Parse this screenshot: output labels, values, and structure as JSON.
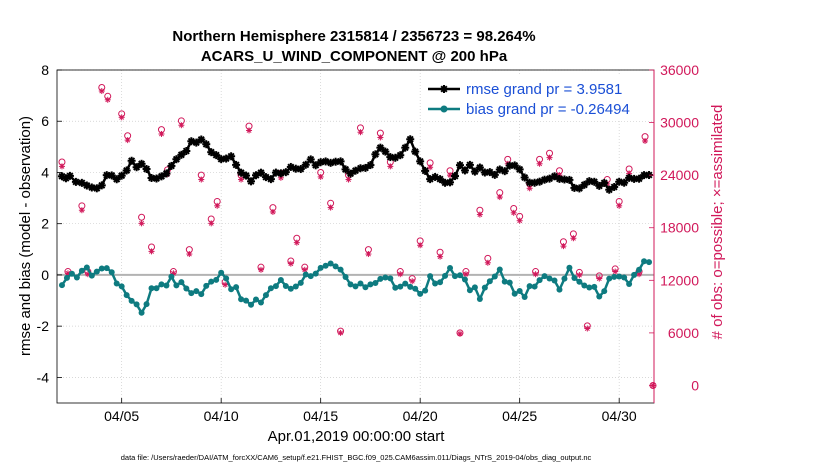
{
  "chart_data": {
    "type": "line",
    "title": "Northern Hemisphere 2315814 / 2356723 = 98.264%",
    "subtitle": "ACARS_U_WIND_COMPONENT @ 200 hPa",
    "xlabel": "Apr.01,2019 00:00:00 start",
    "ylabel": "rmse and bias (model - observation)",
    "y2label": "# of obs: o=possible; ×=assimilated",
    "footer": "data file: /Users/raeder/DAI/ATM_forcXX/CAM6_setup/f.e21.FHIST_BGC.f09_025.CAM6assim.011/Diags_NTrS_2019-04/obs_diag_output.nc",
    "xlim": [
      0.75,
      30.75
    ],
    "ylim": [
      -5,
      8
    ],
    "y2lim": [
      -2000,
      36000
    ],
    "x_ticks": [
      4,
      9,
      14,
      19,
      24,
      29
    ],
    "x_tick_labels": [
      "04/05",
      "04/10",
      "04/15",
      "04/20",
      "04/25",
      "04/30"
    ],
    "y_ticks": [
      -4,
      -2,
      0,
      2,
      4,
      6,
      8
    ],
    "y_tick_labels": [
      "-4",
      "-2",
      "0",
      "2",
      "4",
      "6",
      "8"
    ],
    "y2_ticks": [
      0,
      6000,
      12000,
      18000,
      24000,
      30000,
      36000
    ],
    "y2_tick_labels": [
      "0",
      "6000",
      "12000",
      "18000",
      "24000",
      "30000",
      "36000"
    ],
    "zero_line": 0,
    "colors": {
      "rmse": "#000000",
      "bias": "#0e7b80",
      "obs": "#d1185a",
      "zero": "#b3b3b3",
      "legend_text": "#1a4fd6"
    },
    "series": [
      {
        "name": "rmse grand pr = 3.9581",
        "axis": "left",
        "marker": "asterisk",
        "anchors": [
          [
            1,
            3.85
          ],
          [
            1.4,
            3.75
          ],
          [
            2,
            3.5
          ],
          [
            2.5,
            3.45
          ],
          [
            3,
            3.6
          ],
          [
            3.5,
            3.9
          ],
          [
            4,
            3.8
          ],
          [
            4.5,
            4.35
          ],
          [
            5,
            4.3
          ],
          [
            5.5,
            3.8
          ],
          [
            6,
            3.9
          ],
          [
            6.5,
            4.2
          ],
          [
            7,
            4.6
          ],
          [
            7.5,
            5.1
          ],
          [
            8,
            5.15
          ],
          [
            8.5,
            4.9
          ],
          [
            9,
            4.4
          ],
          [
            9.5,
            4.55
          ],
          [
            10,
            3.9
          ],
          [
            10.5,
            3.6
          ],
          [
            11,
            4.0
          ],
          [
            11.5,
            3.85
          ],
          [
            12,
            3.95
          ],
          [
            12.5,
            4.25
          ],
          [
            13,
            4.15
          ],
          [
            13.5,
            4.4
          ],
          [
            14,
            4.3
          ],
          [
            14.5,
            4.5
          ],
          [
            15,
            4.3
          ],
          [
            15.5,
            4.05
          ],
          [
            16,
            4.2
          ],
          [
            16.5,
            4.4
          ],
          [
            17,
            4.9
          ],
          [
            17.5,
            4.55
          ],
          [
            18,
            4.6
          ],
          [
            18.5,
            5.2
          ],
          [
            19,
            4.5
          ],
          [
            19.5,
            3.85
          ],
          [
            20,
            3.65
          ],
          [
            20.5,
            3.6
          ],
          [
            21,
            4.25
          ],
          [
            21.5,
            4.15
          ],
          [
            22,
            4.1
          ],
          [
            22.5,
            4.0
          ],
          [
            23,
            4.05
          ],
          [
            23.5,
            4.3
          ],
          [
            24,
            4.2
          ],
          [
            24.5,
            3.65
          ],
          [
            25,
            3.6
          ],
          [
            25.5,
            3.9
          ],
          [
            26,
            3.85
          ],
          [
            26.5,
            3.6
          ],
          [
            27,
            3.45
          ],
          [
            27.5,
            3.65
          ],
          [
            28,
            3.5
          ],
          [
            28.5,
            3.4
          ],
          [
            29,
            3.55
          ],
          [
            29.5,
            3.75
          ],
          [
            30,
            3.8
          ],
          [
            30.5,
            3.9
          ]
        ]
      },
      {
        "name": "bias grand pr = -0.26494",
        "axis": "left",
        "marker": "dot",
        "anchors": [
          [
            1,
            -0.4
          ],
          [
            1.5,
            -0.1
          ],
          [
            2,
            0.2
          ],
          [
            2.5,
            0.1
          ],
          [
            3,
            0.25
          ],
          [
            3.5,
            0.2
          ],
          [
            4,
            -0.6
          ],
          [
            4.5,
            -0.9
          ],
          [
            5,
            -1.4
          ],
          [
            5.5,
            -0.6
          ],
          [
            6,
            -0.3
          ],
          [
            6.5,
            -0.2
          ],
          [
            7,
            -0.4
          ],
          [
            7.5,
            -0.6
          ],
          [
            8,
            -0.7
          ],
          [
            8.5,
            -0.3
          ],
          [
            9,
            0.2
          ],
          [
            9.5,
            -0.4
          ],
          [
            10,
            -0.9
          ],
          [
            10.5,
            -1.2
          ],
          [
            11,
            -1.0
          ],
          [
            11.5,
            -0.5
          ],
          [
            12,
            -0.3
          ],
          [
            12.5,
            -0.5
          ],
          [
            13,
            -0.2
          ],
          [
            13.5,
            0.1
          ],
          [
            14,
            0.2
          ],
          [
            14.5,
            0.3
          ],
          [
            15,
            0.1
          ],
          [
            15.5,
            -0.4
          ],
          [
            16,
            -0.5
          ],
          [
            16.5,
            -0.3
          ],
          [
            17,
            -0.1
          ],
          [
            17.5,
            -0.2
          ],
          [
            18,
            -0.6
          ],
          [
            18.5,
            -0.4
          ],
          [
            19,
            -0.7
          ],
          [
            19.5,
            -0.2
          ],
          [
            20,
            -0.4
          ],
          [
            20.5,
            0.3
          ],
          [
            21,
            -0.1
          ],
          [
            21.5,
            -0.5
          ],
          [
            22,
            -0.8
          ],
          [
            22.5,
            -0.3
          ],
          [
            23,
            0.1
          ],
          [
            23.5,
            -0.4
          ],
          [
            24,
            -0.8
          ],
          [
            24.5,
            -0.6
          ],
          [
            25,
            -0.3
          ],
          [
            25.5,
            0.0
          ],
          [
            26,
            -0.4
          ],
          [
            26.5,
            0.3
          ],
          [
            27,
            -0.2
          ],
          [
            27.5,
            -0.4
          ],
          [
            28,
            -0.7
          ],
          [
            28.5,
            -0.3
          ],
          [
            29,
            0.1
          ],
          [
            29.5,
            -0.2
          ],
          [
            30,
            0.25
          ],
          [
            30.5,
            0.5
          ]
        ]
      },
      {
        "name": "# of obs possible",
        "axis": "right",
        "marker": "circle",
        "points": [
          [
            1,
            25500
          ],
          [
            1.3,
            13000
          ],
          [
            2,
            20500
          ],
          [
            2.3,
            13000
          ],
          [
            3,
            34000
          ],
          [
            3.3,
            33000
          ],
          [
            4,
            31000
          ],
          [
            4.3,
            28500
          ],
          [
            5,
            19200
          ],
          [
            5.5,
            15800
          ],
          [
            6,
            29200
          ],
          [
            6.3,
            24600
          ],
          [
            6.6,
            13000
          ],
          [
            7,
            30200
          ],
          [
            7.4,
            15500
          ],
          [
            8,
            24000
          ],
          [
            8.5,
            19000
          ],
          [
            8.8,
            21000
          ],
          [
            9.2,
            11800
          ],
          [
            10,
            24000
          ],
          [
            10.4,
            29600
          ],
          [
            11,
            13500
          ],
          [
            11.6,
            20300
          ],
          [
            12,
            24200
          ],
          [
            12.5,
            14200
          ],
          [
            12.8,
            16800
          ],
          [
            13.2,
            13500
          ],
          [
            14,
            24300
          ],
          [
            14.5,
            20800
          ],
          [
            15,
            6200
          ],
          [
            15.4,
            24000
          ],
          [
            16,
            29400
          ],
          [
            16.4,
            15500
          ],
          [
            17,
            28800
          ],
          [
            17.5,
            25500
          ],
          [
            18,
            13000
          ],
          [
            18.6,
            12200
          ],
          [
            19,
            16500
          ],
          [
            19.5,
            25400
          ],
          [
            20,
            15200
          ],
          [
            20.5,
            24500
          ],
          [
            21,
            6000
          ],
          [
            21.3,
            13000
          ],
          [
            22,
            20000
          ],
          [
            22.4,
            14500
          ],
          [
            23,
            22000
          ],
          [
            23.4,
            25800
          ],
          [
            23.7,
            20200
          ],
          [
            24,
            19300
          ],
          [
            24.5,
            23000
          ],
          [
            24.8,
            13000
          ],
          [
            25,
            25800
          ],
          [
            25.5,
            26500
          ],
          [
            26,
            24500
          ],
          [
            26.2,
            16400
          ],
          [
            26.7,
            17300
          ],
          [
            27,
            12900
          ],
          [
            27.4,
            6800
          ],
          [
            28,
            12500
          ],
          [
            28.4,
            23500
          ],
          [
            28.8,
            13300
          ],
          [
            29,
            21000
          ],
          [
            29.5,
            24700
          ],
          [
            30,
            13000
          ],
          [
            30.3,
            28400
          ],
          [
            30.7,
            0
          ]
        ]
      },
      {
        "name": "# of obs assimilated",
        "axis": "right",
        "marker": "x",
        "points": [
          [
            1,
            25000
          ],
          [
            1.3,
            12800
          ],
          [
            2,
            20000
          ],
          [
            2.3,
            12700
          ],
          [
            3,
            33600
          ],
          [
            3.3,
            32600
          ],
          [
            4,
            30600
          ],
          [
            4.3,
            28000
          ],
          [
            5,
            18500
          ],
          [
            5.5,
            15300
          ],
          [
            6,
            28700
          ],
          [
            6.3,
            24100
          ],
          [
            6.6,
            12800
          ],
          [
            7,
            29700
          ],
          [
            7.4,
            15000
          ],
          [
            8,
            23500
          ],
          [
            8.5,
            18500
          ],
          [
            8.8,
            20500
          ],
          [
            9.2,
            11500
          ],
          [
            10,
            23500
          ],
          [
            10.4,
            29100
          ],
          [
            11,
            13200
          ],
          [
            11.6,
            19800
          ],
          [
            12,
            23700
          ],
          [
            12.5,
            13900
          ],
          [
            12.8,
            16300
          ],
          [
            13.2,
            13200
          ],
          [
            14,
            23800
          ],
          [
            14.5,
            20300
          ],
          [
            15,
            6000
          ],
          [
            15.4,
            23500
          ],
          [
            16,
            28900
          ],
          [
            16.4,
            15000
          ],
          [
            17,
            28300
          ],
          [
            17.5,
            25000
          ],
          [
            18,
            12700
          ],
          [
            18.6,
            11900
          ],
          [
            19,
            16000
          ],
          [
            19.5,
            24900
          ],
          [
            20,
            14700
          ],
          [
            20.5,
            24000
          ],
          [
            21,
            5900
          ],
          [
            21.3,
            12700
          ],
          [
            22,
            19500
          ],
          [
            22.4,
            14000
          ],
          [
            23,
            21500
          ],
          [
            23.4,
            25300
          ],
          [
            23.7,
            19700
          ],
          [
            24,
            18800
          ],
          [
            24.5,
            22500
          ],
          [
            24.8,
            12700
          ],
          [
            25,
            25300
          ],
          [
            25.5,
            26000
          ],
          [
            26,
            24000
          ],
          [
            26.2,
            15900
          ],
          [
            26.7,
            16800
          ],
          [
            27,
            12600
          ],
          [
            27.4,
            6500
          ],
          [
            28,
            12200
          ],
          [
            28.4,
            23000
          ],
          [
            28.8,
            13000
          ],
          [
            29,
            20500
          ],
          [
            29.5,
            24200
          ],
          [
            30,
            12700
          ],
          [
            30.3,
            27900
          ],
          [
            30.7,
            0
          ]
        ]
      }
    ]
  }
}
